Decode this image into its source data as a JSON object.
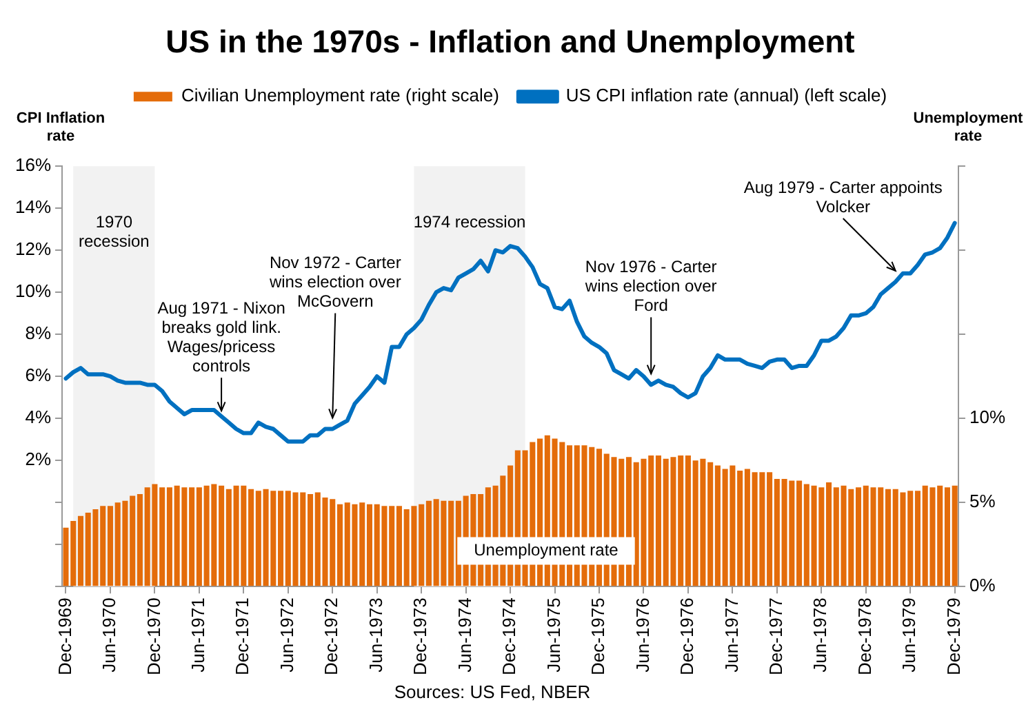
{
  "chart_data": {
    "type": "bar",
    "title": "US in the 1970s - Inflation and Unemployment",
    "ylabel": "CPI Inflation rate",
    "y2label": "Unemployment rate",
    "legend": "top",
    "x": [
      "1969-12",
      "1970-01",
      "1970-02",
      "1970-03",
      "1970-04",
      "1970-05",
      "1970-06",
      "1970-07",
      "1970-08",
      "1970-09",
      "1970-10",
      "1970-11",
      "1970-12",
      "1971-01",
      "1971-02",
      "1971-03",
      "1971-04",
      "1971-05",
      "1971-06",
      "1971-07",
      "1971-08",
      "1971-09",
      "1971-10",
      "1971-11",
      "1971-12",
      "1972-01",
      "1972-02",
      "1972-03",
      "1972-04",
      "1972-05",
      "1972-06",
      "1972-07",
      "1972-08",
      "1972-09",
      "1972-10",
      "1972-11",
      "1972-12",
      "1973-01",
      "1973-02",
      "1973-03",
      "1973-04",
      "1973-05",
      "1973-06",
      "1973-07",
      "1973-08",
      "1973-09",
      "1973-10",
      "1973-11",
      "1973-12",
      "1974-01",
      "1974-02",
      "1974-03",
      "1974-04",
      "1974-05",
      "1974-06",
      "1974-07",
      "1974-08",
      "1974-09",
      "1974-10",
      "1974-11",
      "1974-12",
      "1975-01",
      "1975-02",
      "1975-03",
      "1975-04",
      "1975-05",
      "1975-06",
      "1975-07",
      "1975-08",
      "1975-09",
      "1975-10",
      "1975-11",
      "1975-12",
      "1976-01",
      "1976-02",
      "1976-03",
      "1976-04",
      "1976-05",
      "1976-06",
      "1976-07",
      "1976-08",
      "1976-09",
      "1976-10",
      "1976-11",
      "1976-12",
      "1977-01",
      "1977-02",
      "1977-03",
      "1977-04",
      "1977-05",
      "1977-06",
      "1977-07",
      "1977-08",
      "1977-09",
      "1977-10",
      "1977-11",
      "1977-12",
      "1978-01",
      "1978-02",
      "1978-03",
      "1978-04",
      "1978-05",
      "1978-06",
      "1978-07",
      "1978-08",
      "1978-09",
      "1978-10",
      "1978-11",
      "1978-12",
      "1979-01",
      "1979-02",
      "1979-03",
      "1979-04",
      "1979-05",
      "1979-06",
      "1979-07",
      "1979-08",
      "1979-09",
      "1979-10",
      "1979-11",
      "1979-12"
    ],
    "series": [
      {
        "name": "Civilian Unemployment rate (right scale)",
        "type": "bar",
        "axis": "y2",
        "color": "#e46c0a",
        "values": [
          3.5,
          3.9,
          4.2,
          4.4,
          4.6,
          4.8,
          4.8,
          5.0,
          5.1,
          5.4,
          5.5,
          5.9,
          6.1,
          5.9,
          5.9,
          6.0,
          5.9,
          5.9,
          5.9,
          6.0,
          6.1,
          6.0,
          5.8,
          6.0,
          6.0,
          5.8,
          5.7,
          5.8,
          5.7,
          5.7,
          5.7,
          5.6,
          5.6,
          5.5,
          5.6,
          5.3,
          5.2,
          4.9,
          5.0,
          4.9,
          5.0,
          4.9,
          4.9,
          4.8,
          4.8,
          4.8,
          4.6,
          4.8,
          4.9,
          5.1,
          5.2,
          5.1,
          5.1,
          5.1,
          5.4,
          5.5,
          5.5,
          5.9,
          6.0,
          6.6,
          7.2,
          8.1,
          8.1,
          8.6,
          8.8,
          9.0,
          8.8,
          8.6,
          8.4,
          8.4,
          8.4,
          8.3,
          8.2,
          7.9,
          7.7,
          7.6,
          7.7,
          7.4,
          7.6,
          7.8,
          7.8,
          7.6,
          7.7,
          7.8,
          7.8,
          7.5,
          7.6,
          7.4,
          7.2,
          7.0,
          7.2,
          6.9,
          7.0,
          6.8,
          6.8,
          6.8,
          6.4,
          6.4,
          6.3,
          6.3,
          6.1,
          6.0,
          5.9,
          6.2,
          5.9,
          6.0,
          5.8,
          5.9,
          6.0,
          5.9,
          5.9,
          5.8,
          5.8,
          5.6,
          5.7,
          5.7,
          6.0,
          5.9,
          6.0,
          5.9,
          6.0
        ]
      },
      {
        "name": "US CPI inflation rate (annual) (left scale)",
        "type": "line",
        "color": "#0070c0",
        "values": [
          5.9,
          6.2,
          6.4,
          6.1,
          6.1,
          6.1,
          6.0,
          5.8,
          5.7,
          5.7,
          5.7,
          5.6,
          5.6,
          5.3,
          4.8,
          4.5,
          4.2,
          4.4,
          4.4,
          4.4,
          4.4,
          4.1,
          3.8,
          3.5,
          3.3,
          3.3,
          3.8,
          3.6,
          3.5,
          3.2,
          2.9,
          2.9,
          2.9,
          3.2,
          3.2,
          3.5,
          3.5,
          3.7,
          3.9,
          4.7,
          5.1,
          5.5,
          6.0,
          5.7,
          7.4,
          7.4,
          8.0,
          8.3,
          8.7,
          9.4,
          10.0,
          10.2,
          10.1,
          10.7,
          10.9,
          11.1,
          11.5,
          11.0,
          12.0,
          11.9,
          12.2,
          12.1,
          11.7,
          11.2,
          10.4,
          10.2,
          9.3,
          9.2,
          9.6,
          8.6,
          7.9,
          7.6,
          7.4,
          7.1,
          6.3,
          6.1,
          5.9,
          6.3,
          6.0,
          5.6,
          5.8,
          5.6,
          5.5,
          5.2,
          5.0,
          5.2,
          6.0,
          6.4,
          7.0,
          6.8,
          6.8,
          6.8,
          6.6,
          6.5,
          6.4,
          6.7,
          6.8,
          6.8,
          6.4,
          6.5,
          6.5,
          7.0,
          7.7,
          7.7,
          7.9,
          8.3,
          8.9,
          8.9,
          9.0,
          9.3,
          9.9,
          10.2,
          10.5,
          10.9,
          10.9,
          11.3,
          11.8,
          11.9,
          12.1,
          12.6,
          13.3
        ]
      }
    ],
    "xlim": [
      "1969-11-16",
      "1979-12-16"
    ],
    "xticks": [
      {
        "value": "1969-12",
        "label": "Dec-1969"
      },
      {
        "value": "1970-06",
        "label": "Jun-1970"
      },
      {
        "value": "1970-12",
        "label": "Dec-1970"
      },
      {
        "value": "1971-06",
        "label": "Jun-1971"
      },
      {
        "value": "1971-12",
        "label": "Dec-1971"
      },
      {
        "value": "1972-06",
        "label": "Jun-1972"
      },
      {
        "value": "1972-12",
        "label": "Dec-1972"
      },
      {
        "value": "1973-06",
        "label": "Jun-1973"
      },
      {
        "value": "1973-12",
        "label": "Dec-1973"
      },
      {
        "value": "1974-06",
        "label": "Jun-1974"
      },
      {
        "value": "1974-12",
        "label": "Dec-1974"
      },
      {
        "value": "1975-06",
        "label": "Jun-1975"
      },
      {
        "value": "1975-12",
        "label": "Dec-1975"
      },
      {
        "value": "1976-06",
        "label": "Jun-1976"
      },
      {
        "value": "1976-12",
        "label": "Dec-1976"
      },
      {
        "value": "1977-06",
        "label": "Jun-1977"
      },
      {
        "value": "1977-12",
        "label": "Dec-1977"
      },
      {
        "value": "1978-06",
        "label": "Jun-1978"
      },
      {
        "value": "1978-12",
        "label": "Dec-1978"
      },
      {
        "value": "1979-06",
        "label": "Jun-1979"
      },
      {
        "value": "1979-12",
        "label": "Dec-1979"
      }
    ],
    "ylim": [
      -4,
      16
    ],
    "yticks": [
      {
        "value": -4,
        "label": null
      },
      {
        "value": -2,
        "label": null
      },
      {
        "value": 0,
        "label": null
      },
      {
        "value": 2,
        "label": "2%"
      },
      {
        "value": 4,
        "label": "4%"
      },
      {
        "value": 6,
        "label": "6%"
      },
      {
        "value": 8,
        "label": "8%"
      },
      {
        "value": 10,
        "label": "10%"
      },
      {
        "value": 12,
        "label": "12%"
      },
      {
        "value": 14,
        "label": "14%"
      },
      {
        "value": 16,
        "label": "16%"
      }
    ],
    "y2lim": [
      0,
      25
    ],
    "y2ticks": [
      {
        "value": 0,
        "label": "0%"
      },
      {
        "value": 5,
        "label": "5%"
      },
      {
        "value": 10,
        "label": "10%"
      },
      {
        "value": 15,
        "label": null
      },
      {
        "value": 20,
        "label": null
      },
      {
        "value": 25,
        "label": null
      }
    ],
    "bands": [
      {
        "axis": "x",
        "from": "1970-01",
        "to": "1970-12",
        "label": "1970 recession",
        "color": "#f2f2f2"
      },
      {
        "axis": "x",
        "from": "1973-11",
        "to": "1975-02",
        "label": "1974 recession",
        "color": "#f2f2f2"
      }
    ],
    "annotations": [
      {
        "text": "Aug 1971 - Nixon breaks gold link. Wages/pricess controls",
        "x": "1971-09",
        "y": 4.1
      },
      {
        "text": "Nov 1972 - Carter wins election over McGovern",
        "x": "1972-12",
        "y": 3.5
      },
      {
        "text": "Nov 1976 - Carter wins election over Ford",
        "x": "1976-07",
        "y": 5.6
      },
      {
        "text": "Aug 1979 - Carter appoints Volcker",
        "x": "1979-04",
        "y": 10.5
      },
      "Unemployment rate",
      "Sources: US Fed, NBER"
    ]
  }
}
